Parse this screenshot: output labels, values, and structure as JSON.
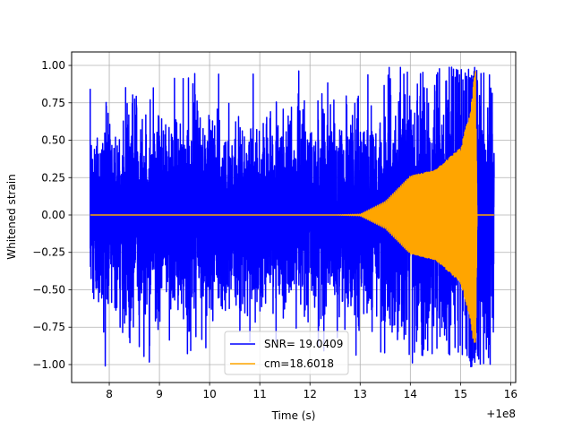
{
  "chart_data": {
    "type": "line",
    "title": "",
    "xlabel": "Time (s)",
    "ylabel": "Whitened strain",
    "x_offset_label": "+1e8",
    "xlim": [
      7.25,
      16.1
    ],
    "ylim": [
      -1.12,
      1.09
    ],
    "xticks": [
      8,
      9,
      10,
      11,
      12,
      13,
      14,
      15,
      16
    ],
    "yticks": [
      -1.0,
      -0.75,
      -0.5,
      -0.25,
      0.0,
      0.25,
      0.5,
      0.75,
      1.0
    ],
    "xtick_labels": [
      "8",
      "9",
      "10",
      "11",
      "12",
      "13",
      "14",
      "15",
      "16"
    ],
    "ytick_labels": [
      "−1.00",
      "−0.75",
      "−0.50",
      "−0.25",
      "0.00",
      "0.25",
      "0.50",
      "0.75",
      "1.00"
    ],
    "grid": true,
    "legend_position": "lower-center",
    "series": [
      {
        "name": "SNR= 19.0409",
        "color": "#0000ff",
        "kind": "noise",
        "x_range": [
          7.62,
          15.67
        ],
        "envelope_x": [
          7.62,
          8.0,
          9.0,
          10.0,
          11.0,
          12.0,
          13.0,
          13.6,
          14.0,
          14.5,
          15.0,
          15.3,
          15.67
        ],
        "envelope_amplitude": [
          0.32,
          0.32,
          0.32,
          0.32,
          0.32,
          0.32,
          0.33,
          0.38,
          0.43,
          0.45,
          0.5,
          0.6,
          0.4
        ],
        "max_value": 0.99,
        "min_value": -1.02
      },
      {
        "name": "cm=18.6018",
        "color": "#ffa500",
        "kind": "chirp",
        "x_range": [
          7.62,
          15.67
        ],
        "x": [
          7.62,
          12.5,
          13.0,
          13.5,
          14.0,
          14.5,
          15.0,
          15.2,
          15.3,
          15.33,
          15.67
        ],
        "amplitude": [
          0.0,
          0.0,
          0.005,
          0.09,
          0.26,
          0.3,
          0.45,
          0.7,
          1.0,
          0.0,
          0.0
        ],
        "max_value": 1.0,
        "min_value": -0.85
      }
    ]
  }
}
